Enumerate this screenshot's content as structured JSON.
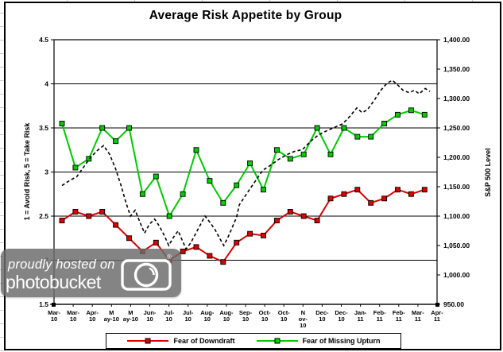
{
  "chart_data": {
    "type": "line",
    "title": "Average Risk Appetite by Group",
    "left_axis_title": "1 = Avoid Risk, 5 = Take Risk",
    "right_axis_title": "S&P 500 Level",
    "left_ylim": [
      1.5,
      4.5
    ],
    "right_ylim": [
      950,
      1400
    ],
    "gridlines": "horizontal",
    "legend_position": "bottom",
    "left_tick_values": [
      4.5,
      4,
      3.5,
      3,
      2.5,
      2,
      1.5
    ],
    "left_tick_labels": [
      "4.5",
      "4",
      "3.5",
      "3",
      "2.5",
      "2",
      "1.5"
    ],
    "right_tick_values": [
      1400,
      1350,
      1300,
      1250,
      1200,
      1150,
      1100,
      1050,
      1000,
      950
    ],
    "right_tick_labels": [
      "1,400.00",
      "1,350.00",
      "1,300.00",
      "1,250.00",
      "1,200.00",
      "1,150.00",
      "1,100.00",
      "1,050.00",
      "1,000.00",
      "950.00"
    ],
    "x_tick_labels": [
      "Mar-10",
      "Mar-10",
      "Apr-10",
      "May-10",
      "May-10",
      "Jun-10",
      "Jul-10",
      "Jul-10",
      "Aug-10",
      "Aug-10",
      "Sep-10",
      "Oct-10",
      "Oct-10",
      "Nov-10",
      "Dec-10",
      "Dec-10",
      "Jan-11",
      "Feb-11",
      "Feb-11",
      "Mar-11",
      "Apr-11"
    ],
    "x_tick_display": [
      [
        "Mar-",
        "10"
      ],
      [
        "Mar-",
        "10"
      ],
      [
        "Apr-",
        "10"
      ],
      [
        "M",
        "ay-10"
      ],
      [
        "M",
        "ay-10"
      ],
      [
        "Jun-",
        "10"
      ],
      [
        "Jul-",
        "10"
      ],
      [
        "Jul-",
        "10"
      ],
      [
        "Aug-",
        "10"
      ],
      [
        "Aug-",
        "10"
      ],
      [
        "Sep-",
        "10"
      ],
      [
        "Oct-",
        "10"
      ],
      [
        "Oct-",
        "10"
      ],
      [
        "N",
        "ov-",
        "10"
      ],
      [
        "Dec-",
        "10"
      ],
      [
        "Dec-",
        "10"
      ],
      [
        "Jan-",
        "11"
      ],
      [
        "Feb-",
        "11"
      ],
      [
        "Feb-",
        "11"
      ],
      [
        "Mar-",
        "11"
      ],
      [
        "Apr-",
        "11"
      ]
    ],
    "series": [
      {
        "name": "Fear of Downdraft",
        "axis": "left",
        "color": "#dd0000",
        "marker": "square",
        "line_style": "solid",
        "values": [
          2.45,
          2.55,
          2.5,
          2.55,
          2.4,
          2.25,
          2.1,
          2.2,
          2.0,
          2.1,
          2.15,
          2.05,
          1.98,
          2.2,
          2.3,
          2.28,
          2.45,
          2.55,
          2.5,
          2.45,
          2.7,
          2.75,
          2.8,
          2.65,
          2.7,
          2.8,
          2.75,
          2.8
        ]
      },
      {
        "name": "Fear of Missing Upturn",
        "axis": "left",
        "color": "#00cc00",
        "marker": "square",
        "line_style": "solid",
        "values": [
          3.55,
          3.05,
          3.15,
          3.5,
          3.35,
          3.5,
          2.75,
          2.95,
          2.5,
          2.75,
          3.25,
          2.9,
          2.65,
          2.85,
          3.1,
          2.8,
          3.25,
          3.15,
          3.2,
          3.5,
          3.2,
          3.5,
          3.4,
          3.4,
          3.55,
          3.65,
          3.7,
          3.65
        ]
      },
      {
        "name": "S&P 500",
        "axis": "right",
        "color": "#000000",
        "marker": "none",
        "line_style": "dashed",
        "points": [
          [
            0,
            1152
          ],
          [
            0.6,
            1161
          ],
          [
            1.1,
            1167
          ],
          [
            1.6,
            1183
          ],
          [
            2.1,
            1199
          ],
          [
            2.6,
            1211
          ],
          [
            3.1,
            1220
          ],
          [
            3.55,
            1205
          ],
          [
            4.0,
            1180
          ],
          [
            4.4,
            1152
          ],
          [
            4.75,
            1124
          ],
          [
            5.1,
            1100
          ],
          [
            5.45,
            1110
          ],
          [
            5.8,
            1090
          ],
          [
            6.15,
            1071
          ],
          [
            6.5,
            1086
          ],
          [
            6.9,
            1095
          ],
          [
            7.25,
            1083
          ],
          [
            7.6,
            1068
          ],
          [
            7.95,
            1050
          ],
          [
            8.3,
            1064
          ],
          [
            8.65,
            1075
          ],
          [
            8.95,
            1059
          ],
          [
            9.25,
            1044
          ],
          [
            9.6,
            1055
          ],
          [
            9.95,
            1070
          ],
          [
            10.3,
            1085
          ],
          [
            10.65,
            1100
          ],
          [
            11.0,
            1090
          ],
          [
            11.4,
            1077
          ],
          [
            11.75,
            1062
          ],
          [
            12.05,
            1050
          ],
          [
            12.4,
            1066
          ],
          [
            12.7,
            1082
          ],
          [
            13.0,
            1098
          ],
          [
            13.2,
            1119
          ],
          [
            13.75,
            1138
          ],
          [
            14.35,
            1158
          ],
          [
            14.95,
            1178
          ],
          [
            15.5,
            1186
          ],
          [
            16.1,
            1196
          ],
          [
            16.7,
            1204
          ],
          [
            17.3,
            1210
          ],
          [
            17.9,
            1213
          ],
          [
            18.5,
            1227
          ],
          [
            19.1,
            1238
          ],
          [
            19.7,
            1245
          ],
          [
            20.3,
            1251
          ],
          [
            20.9,
            1257
          ],
          [
            21.45,
            1270
          ],
          [
            21.95,
            1284
          ],
          [
            22.35,
            1276
          ],
          [
            22.75,
            1281
          ],
          [
            23.25,
            1297
          ],
          [
            23.7,
            1313
          ],
          [
            24.2,
            1326
          ],
          [
            24.6,
            1331
          ],
          [
            25.0,
            1323
          ],
          [
            25.4,
            1314
          ],
          [
            25.85,
            1310
          ],
          [
            26.25,
            1314
          ],
          [
            26.6,
            1308
          ],
          [
            27.05,
            1317
          ],
          [
            27.4,
            1312
          ]
        ]
      }
    ]
  },
  "watermark": {
    "line1": "proudly hosted on",
    "line2": "photobucket",
    "registered": "®"
  }
}
